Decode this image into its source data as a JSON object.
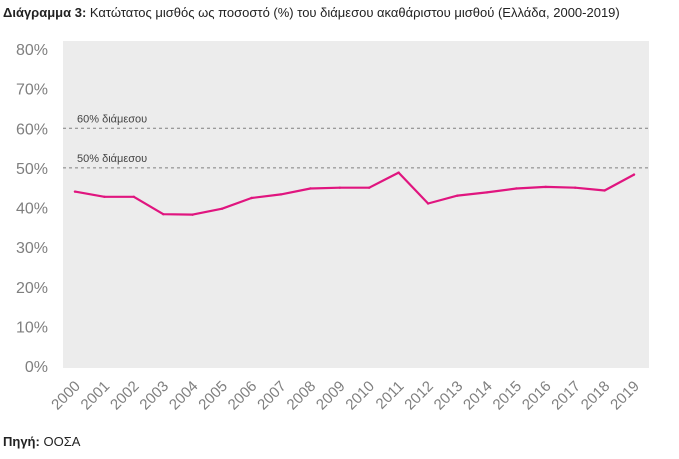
{
  "header": {
    "title_bold": "Διάγραμμα 3:",
    "title_text": "Κατώτατος μισθός ως ποσοστό (%) του διάμεσου ακαθάριστου μισθού (Ελλάδα, 2000-2019)"
  },
  "footer": {
    "source_bold": "Πηγή:",
    "source_text": "ΟΟΣΑ"
  },
  "colors": {
    "line": "#e0157f",
    "plot_bg": "#ececec",
    "reference_line": "#808080",
    "tick_text": "#7f7f7f"
  },
  "chart_data": {
    "type": "line",
    "title": "Κατώτατος μισθός ως ποσοστό (%) του διάμεσου ακαθάριστου μισθού (Ελλάδα, 2000-2019)",
    "xlabel": "",
    "ylabel": "",
    "x": [
      "2000",
      "2001",
      "2002",
      "2003",
      "2004",
      "2005",
      "2006",
      "2007",
      "2008",
      "2009",
      "2010",
      "2011",
      "2012",
      "2013",
      "2014",
      "2015",
      "2016",
      "2017",
      "2018",
      "2019"
    ],
    "series": [
      {
        "values": [
          44.0,
          42.7,
          42.7,
          38.3,
          38.2,
          39.7,
          42.4,
          43.3,
          44.8,
          45.0,
          45.0,
          48.8,
          41.0,
          43.0,
          43.8,
          44.8,
          45.2,
          45.0,
          44.3,
          48.3
        ]
      }
    ],
    "ylim": [
      0,
      80
    ],
    "yticks": [
      0,
      10,
      20,
      30,
      40,
      50,
      60,
      70,
      80
    ],
    "ytick_labels": [
      "0%",
      "10%",
      "20%",
      "30%",
      "40%",
      "50%",
      "60%",
      "70%",
      "80%"
    ],
    "reference_lines": [
      {
        "value": 60,
        "label": "60% διάμεσου"
      },
      {
        "value": 50,
        "label": "50% διάμεσου"
      }
    ],
    "grid": false,
    "legend": "none"
  }
}
